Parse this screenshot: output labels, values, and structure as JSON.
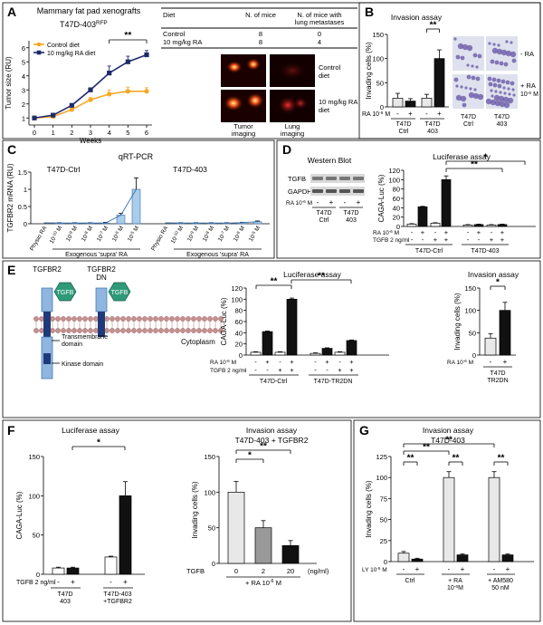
{
  "colors": {
    "orange": "#f5a623",
    "navy": "#1f2a6b",
    "lightblue": "#a9cdea",
    "bluestroke": "#3a6fae",
    "gray": "#999999",
    "lightgray": "#e8e8e8",
    "black": "#111111"
  },
  "panels": {
    "A": "A",
    "B": "B",
    "C": "C",
    "D": "D",
    "E": "E",
    "F": "F",
    "G": "G"
  },
  "chart_data": [
    {
      "id": "A-line",
      "type": "line",
      "title": "Mammary fat pad xenografts",
      "subtitle": "T47D-403",
      "subtitle_sup": "RFP",
      "xlabel": "Weeks",
      "ylabel": "Tumor size (RU)",
      "x": [
        0,
        1,
        2,
        3,
        4,
        5,
        6
      ],
      "xticks": [
        "0",
        "1",
        "2",
        "3",
        "4",
        "5",
        "6"
      ],
      "yticks": [
        "1",
        "2",
        "3",
        "4",
        "5",
        "6"
      ],
      "ylim": [
        0.5,
        6.5
      ],
      "series": [
        {
          "name": "Control diet",
          "values": [
            1,
            1.1,
            1.6,
            2.3,
            2.7,
            2.9,
            2.9
          ],
          "err": [
            0.05,
            0.05,
            0.1,
            0.15,
            0.3,
            0.3,
            0.25
          ]
        },
        {
          "name": "10 mg/kg RA diet",
          "values": [
            1,
            1.2,
            1.9,
            3.0,
            4.2,
            5.0,
            5.5
          ],
          "err": [
            0.05,
            0.05,
            0.1,
            0.15,
            0.5,
            0.4,
            0.3
          ]
        }
      ],
      "annotation": "**"
    },
    {
      "id": "A-table",
      "type": "table",
      "columns": [
        "Diet",
        "N. of mice",
        "N. of mice with lung metastases"
      ],
      "rows": [
        [
          "Control",
          "8",
          "0"
        ],
        [
          "10 mg/kg RA",
          "8",
          "4"
        ]
      ],
      "image_labels": {
        "row1": "Control diet",
        "row2": "10 mg/kg RA diet",
        "col1": "Tumor imaging",
        "col2": "Lung imaging"
      }
    },
    {
      "id": "B",
      "type": "bar",
      "title": "Invasion assay",
      "ylabel": "Invading cells (%)",
      "yticks": [
        "0",
        "50",
        "100",
        "150"
      ],
      "ylim": [
        0,
        150
      ],
      "ra_label": "RA 10",
      "ra_sup": "-6",
      "ra_unit": " M",
      "signs": [
        "-",
        "+",
        "-",
        "+"
      ],
      "groups": [
        "T47D Ctrl",
        "T47D 403"
      ],
      "values": [
        18,
        12,
        18,
        100
      ],
      "err": [
        10,
        5,
        8,
        18
      ],
      "annotation": "**",
      "image_labels": {
        "row1": "- RA",
        "row2": "+ RA",
        "row2b": "10",
        "row2b_sup": "-6",
        "row2b_unit": " M",
        "col1a": "T47D",
        "col1b": "Ctrl",
        "col2a": "T47D",
        "col2b": "403"
      }
    },
    {
      "id": "C",
      "type": "bar",
      "title": "qRT-PCR",
      "ylabel": "TGFBR2 mRNA (RU)",
      "yticks": [
        "0",
        "0.5",
        "1",
        "1.5"
      ],
      "ylim": [
        0,
        1.5
      ],
      "groups": [
        "T47D-Ctrl",
        "T47D-403"
      ],
      "xlabels": [
        "Physio RA",
        "10",
        "10",
        "10",
        "10",
        "10",
        "10"
      ],
      "xsups": [
        "",
        "-10",
        "-9",
        "-8",
        "-7",
        "-6",
        "-5"
      ],
      "xunit": " M",
      "group_caption": "Exogenous 'supra' RA",
      "values_ctrl": [
        0,
        0.02,
        0.02,
        0.02,
        0.02,
        0.25,
        1.0
      ],
      "err_ctrl": [
        0,
        0.01,
        0.01,
        0.01,
        0.02,
        0.05,
        0.33
      ],
      "values_403": [
        0,
        0.02,
        0.02,
        0.02,
        0.02,
        0.03,
        0.06
      ],
      "err_403": [
        0,
        0.01,
        0.01,
        0.01,
        0.01,
        0.01,
        0.02
      ]
    },
    {
      "id": "D-wb",
      "type": "table",
      "title": "Western Blot",
      "rows": [
        "TGFB",
        "GAPDH"
      ],
      "ra_label": "RA 10",
      "ra_sup": "-6",
      "ra_unit": " M",
      "signs": [
        "-",
        "+",
        "-",
        "+"
      ],
      "groups": [
        "T47D Ctrl",
        "T47D 403"
      ]
    },
    {
      "id": "D-luc",
      "type": "bar",
      "title": "Luciferase assay",
      "ylabel": "CAGA-Luc (%)",
      "yticks": [
        "0",
        "20",
        "40",
        "60",
        "80",
        "100",
        "120"
      ],
      "ylim": [
        0,
        120
      ],
      "ra_label": "RA 10",
      "ra_sup": "-6",
      "ra_unit": " M",
      "tgfb_label": "TGFB 2 ng/ml",
      "ra_signs": [
        "-",
        "+",
        "-",
        "+",
        "-",
        "+",
        "-",
        "+"
      ],
      "tgfb_signs": [
        "-",
        "-",
        "+",
        "+",
        "-",
        "-",
        "+",
        "+"
      ],
      "groups": [
        "T47D-Ctrl",
        "T47D-403"
      ],
      "values": [
        5,
        42,
        7,
        100,
        3,
        4,
        3,
        4
      ],
      "err": [
        1,
        1,
        1,
        8,
        1,
        1,
        1,
        1
      ],
      "colors": [
        "#ffffff",
        "#111111",
        "#ffffff",
        "#111111",
        "#ffffff",
        "#111111",
        "#ffffff",
        "#111111"
      ],
      "annotations": [
        "**",
        "*"
      ]
    },
    {
      "id": "E-diagram",
      "type": "diagram",
      "labels": [
        "TGFBR2",
        "TGFBR2",
        "DN",
        "TGFB",
        "TGFB",
        "Transmembrane domain",
        "Cytoplasm",
        "Kinase domain"
      ]
    },
    {
      "id": "E-luc",
      "type": "bar",
      "title": "Luciferase assay",
      "ylabel": "CAGA-Luc (%)",
      "yticks": [
        "0",
        "20",
        "40",
        "60",
        "80",
        "100",
        "120"
      ],
      "ylim": [
        0,
        120
      ],
      "ra_label": "RA 10",
      "ra_sup": "-6",
      "ra_unit": " M",
      "tgfb_label": "TGFB 2 ng/ml",
      "ra_signs": [
        "-",
        "+",
        "-",
        "+",
        "-",
        "+",
        "-",
        "+"
      ],
      "tgfb_signs": [
        "-",
        "-",
        "+",
        "+",
        "-",
        "-",
        "+",
        "+"
      ],
      "groups": [
        "T47D-Ctrl",
        "T47D-TR2DN"
      ],
      "values": [
        5,
        42,
        5,
        100,
        3,
        12,
        5,
        26
      ],
      "err": [
        1,
        1,
        1,
        2,
        1,
        1,
        1,
        1
      ],
      "colors": [
        "#ffffff",
        "#111111",
        "#ffffff",
        "#111111",
        "#ffffff",
        "#111111",
        "#ffffff",
        "#111111"
      ],
      "annotations": [
        "**",
        "**"
      ]
    },
    {
      "id": "E-inv",
      "type": "bar",
      "title": "Invasion assay",
      "ylabel": "Invading cells (%)",
      "yticks": [
        "0",
        "50",
        "100",
        "150"
      ],
      "ylim": [
        0,
        150
      ],
      "ra_label": "RA 10",
      "ra_sup": "-6",
      "ra_unit": " M",
      "signs": [
        "-",
        "+"
      ],
      "groups": [
        "T47D",
        "TR2DN"
      ],
      "values": [
        38,
        100
      ],
      "err": [
        10,
        18
      ],
      "colors": [
        "#e8e8e8",
        "#111111"
      ],
      "annotation": "*"
    },
    {
      "id": "F-luc",
      "type": "bar",
      "title": "Luciferase assay",
      "ylabel": "CAGA-Luc (%)",
      "yticks": [
        "0",
        "50",
        "100",
        "150"
      ],
      "ylim": [
        0,
        150
      ],
      "tgfb_label": "TGFB 2 ng/ml",
      "signs": [
        "-",
        "+",
        "-",
        "+"
      ],
      "groups": [
        "T47D 403",
        "T47D-403 +TGFBR2"
      ],
      "values": [
        8,
        8,
        22,
        100
      ],
      "err": [
        1,
        1,
        1,
        18
      ],
      "colors": [
        "#ffffff",
        "#111111",
        "#ffffff",
        "#111111"
      ],
      "annotation": "*"
    },
    {
      "id": "F-inv",
      "type": "bar",
      "title": "Invasion assay",
      "subtitle": "T47D-403 + TGFBR2",
      "ylabel": "Invading cells (%)",
      "yticks": [
        "0",
        "50",
        "100",
        "150"
      ],
      "ylim": [
        0,
        150
      ],
      "tgfb_label": "TGFB",
      "tgfb_unit": "(ng/ml)",
      "doses": [
        "0",
        "2",
        "20"
      ],
      "ra_caption": "+ RA 10",
      "ra_sup": "-6",
      "ra_unit": " M",
      "values": [
        100,
        50,
        25
      ],
      "err": [
        15,
        10,
        7
      ],
      "colors": [
        "#e8e8e8",
        "#999999",
        "#111111"
      ],
      "annotations": [
        "*",
        "**"
      ]
    },
    {
      "id": "G",
      "type": "bar",
      "title": "Invasion assay",
      "subtitle": "T47D-403",
      "ylabel": "Invading cells (%)",
      "yticks": [
        "0",
        "25",
        "50",
        "75",
        "100",
        "125"
      ],
      "ylim": [
        0,
        125
      ],
      "ly_label": "LY 10",
      "ly_sup": "-5",
      "ly_unit": " M",
      "signs": [
        "-",
        "+",
        "-",
        "+",
        "-",
        "+"
      ],
      "groups": [
        "Ctrl",
        "+ RA",
        "+ AM580"
      ],
      "groups2": [
        "",
        "10",
        "50 nM"
      ],
      "groups2_sup": [
        "",
        "-6",
        ""
      ],
      "groups2_unit": [
        "",
        "M",
        ""
      ],
      "values": [
        10,
        3,
        100,
        8,
        100,
        8
      ],
      "err": [
        2,
        1,
        7,
        1,
        7,
        1
      ],
      "colors": [
        "#e8e8e8",
        "#111111",
        "#e8e8e8",
        "#111111",
        "#e8e8e8",
        "#111111"
      ],
      "annotations": [
        "**",
        "**",
        "**",
        "**",
        "**"
      ]
    }
  ]
}
